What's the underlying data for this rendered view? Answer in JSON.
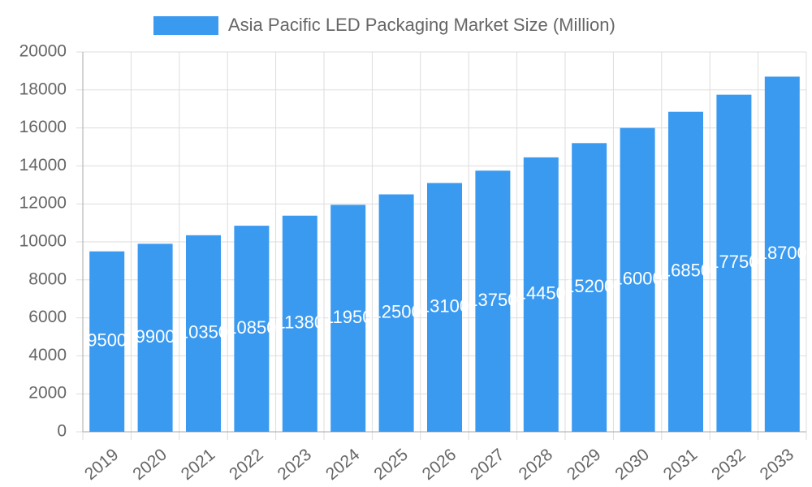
{
  "chart_data": {
    "type": "bar",
    "series": [
      {
        "name": "Asia Pacific LED Packaging Market Size (Million)",
        "color": "#3a9af0",
        "values": [
          9500,
          9900,
          10350,
          10850,
          11380,
          11950,
          12500,
          13100,
          13750,
          14450,
          15200,
          16000,
          16850,
          17750,
          18700
        ]
      }
    ],
    "categories": [
      "2019",
      "2020",
      "2021",
      "2022",
      "2023",
      "2024",
      "2025",
      "2026",
      "2027",
      "2028",
      "2029",
      "2030",
      "2031",
      "2032",
      "2033"
    ],
    "ylim": [
      0,
      20000
    ],
    "yticks": [
      0,
      2000,
      4000,
      6000,
      8000,
      10000,
      12000,
      14000,
      16000,
      18000,
      20000
    ],
    "grid": true,
    "legend": "top"
  }
}
